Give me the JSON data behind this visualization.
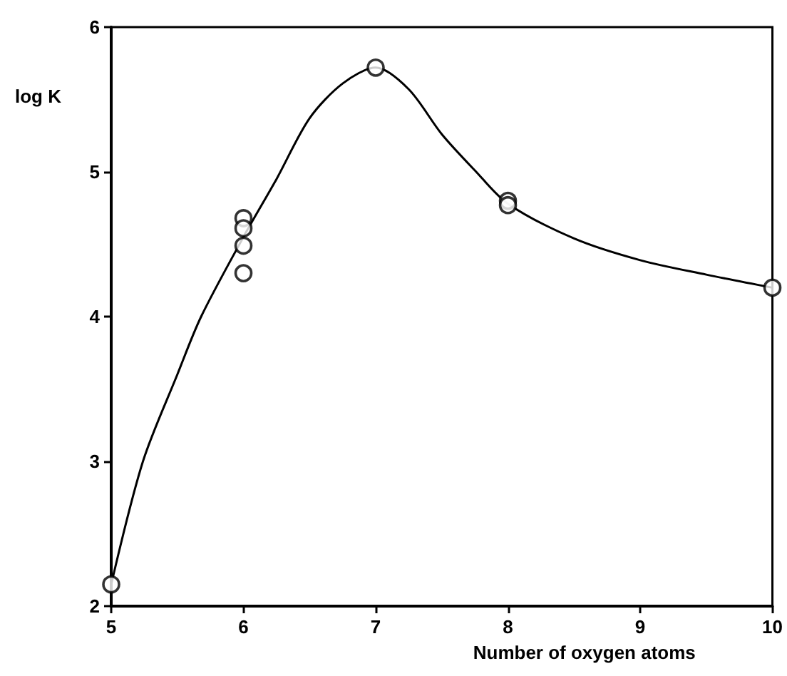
{
  "chart_data": {
    "type": "scatter",
    "xlabel": "Number of oxygen atoms",
    "ylabel": "log K",
    "xlim": [
      5,
      10
    ],
    "xticks": [
      5,
      6,
      7,
      8,
      9,
      10
    ],
    "ylim": [
      2,
      6
    ],
    "yticks": [
      2,
      3,
      4,
      5,
      6
    ],
    "grid": false,
    "series": [
      {
        "type": "line",
        "color": "#000000",
        "marker": "none",
        "x": [
          5,
          5.24,
          5.5,
          5.68,
          6,
          6.25,
          6.5,
          6.75,
          7,
          7.25,
          7.5,
          7.75,
          8,
          8.5,
          9,
          9.5,
          10
        ],
        "values": [
          2.15,
          3.0,
          3.6,
          4.0,
          4.55,
          4.95,
          5.37,
          5.61,
          5.72,
          5.57,
          5.26,
          5.01,
          4.78,
          4.54,
          4.39,
          4.29,
          4.2
        ]
      },
      {
        "color": "#000000",
        "marker": "circle",
        "x": [
          5,
          6,
          6,
          6,
          6,
          7,
          8,
          8,
          10
        ],
        "values": [
          2.15,
          4.68,
          4.61,
          4.49,
          4.3,
          5.72,
          4.8,
          4.77,
          4.2
        ]
      }
    ]
  }
}
